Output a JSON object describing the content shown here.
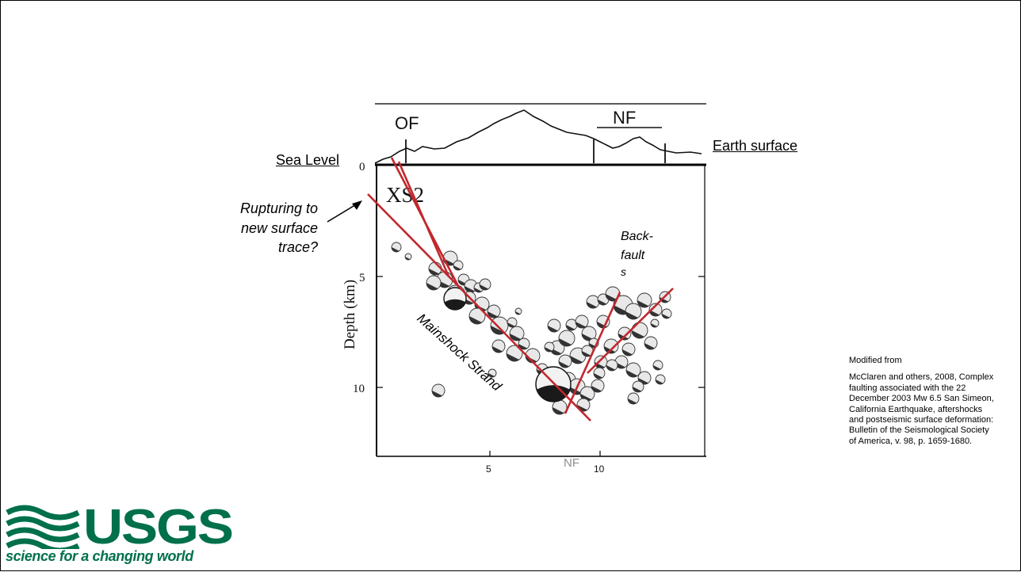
{
  "labels": {
    "sea_level": "Sea Level",
    "earth_surface": "Earth surface",
    "rupturing": [
      "Rupturing to",
      "new surface",
      "trace?"
    ],
    "back_fault": [
      "Back-",
      "fault",
      "s"
    ],
    "mainshock": "Mainshock Strand"
  },
  "figure": {
    "fault_top_labels": {
      "of": "OF",
      "nf": "NF",
      "partial_bottom": "NF"
    },
    "cross_section_label": "XS2",
    "y_axis_label": "Depth (km)",
    "y_ticks": [
      "0",
      "5",
      "10"
    ],
    "x_ticks": [
      "5",
      "10"
    ],
    "fault_line_color": "#c0282d"
  },
  "credit": {
    "heading": "Modified from",
    "citation": "McClaren and others, 2008, Complex faulting associated with the 22 December 2003 Mw 6.5 San Simeon, California Earthquake, aftershocks and postseismic surface deformation: Bulletin of the Seismological Society of America, v. 98, p. 1659-1680."
  },
  "logo": {
    "name": "USGS",
    "tagline": "science for a changing world",
    "color": "#00704a"
  }
}
